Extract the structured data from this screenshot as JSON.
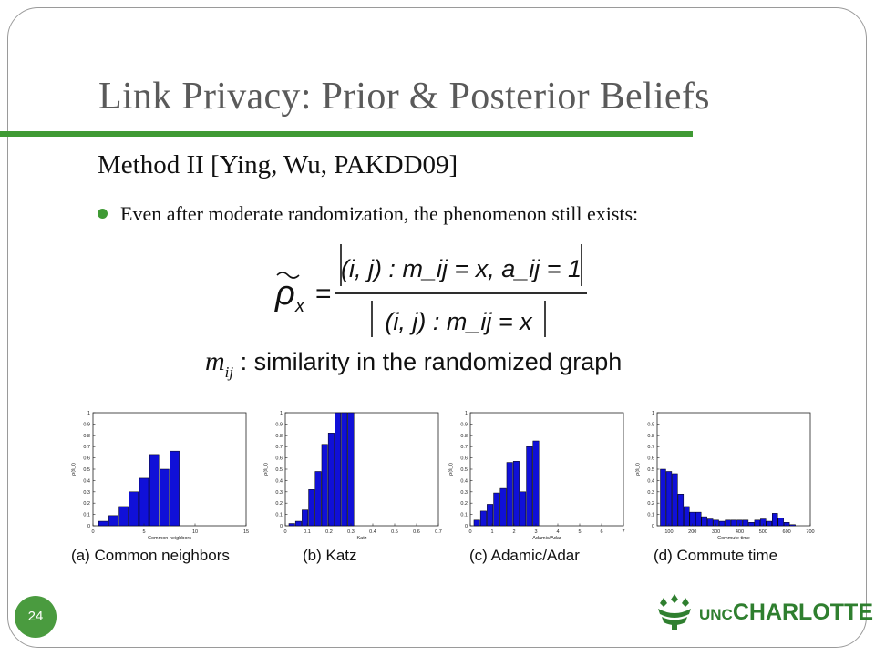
{
  "slide": {
    "title": "Link Privacy: Prior & Posterior Beliefs",
    "subtitle": "Method II [Ying, Wu, PAKDD09]",
    "bullet": "Even after moderate randomization, the phenomenon still exists:",
    "formula": {
      "lhs_symbol": "ρ",
      "lhs_subscript": "x",
      "equals": "=",
      "numerator": "(i, j) : m_ij = x, a_ij = 1",
      "denominator": "(i, j) : m_ij = x"
    },
    "definition": {
      "symbol": "m",
      "subscript": "ij",
      "text": ": similarity in the randomized graph"
    },
    "page_number": "24",
    "logo": {
      "prefix": "UNC",
      "name": "CHARLOTTE"
    },
    "colors": {
      "accent": "#3f9a34",
      "bar": "#1010d8",
      "frame": "#9a9a9a"
    }
  },
  "chart_data": [
    {
      "type": "bar",
      "caption": "(a) Common neighbors",
      "xlabel": "Common neighbors",
      "ylabel": "ρ(ŝ_i)",
      "xlim": [
        0,
        15
      ],
      "ylim": [
        0,
        1
      ],
      "xticks": [
        0,
        5,
        10,
        15
      ],
      "yticks": [
        0,
        0.1,
        0.2,
        0.3,
        0.4,
        0.5,
        0.6,
        0.7,
        0.8,
        0.9,
        1
      ],
      "bar_width": 0.9,
      "x": [
        1,
        2,
        3,
        4,
        5,
        6,
        7,
        8
      ],
      "values": [
        0.04,
        0.09,
        0.17,
        0.3,
        0.42,
        0.63,
        0.5,
        0.66
      ]
    },
    {
      "type": "bar",
      "caption": "(b) Katz",
      "xlabel": "Katz",
      "ylabel": "ρ(ŝ_i)",
      "xlim": [
        0,
        0.7
      ],
      "ylim": [
        0,
        1
      ],
      "xticks": [
        0,
        0.1,
        0.2,
        0.3,
        0.4,
        0.5,
        0.6,
        0.7
      ],
      "yticks": [
        0,
        0.1,
        0.2,
        0.3,
        0.4,
        0.5,
        0.6,
        0.7,
        0.8,
        0.9,
        1
      ],
      "bar_width": 0.027,
      "x": [
        0.03,
        0.06,
        0.09,
        0.12,
        0.15,
        0.18,
        0.21,
        0.24,
        0.27,
        0.3
      ],
      "values": [
        0.02,
        0.04,
        0.14,
        0.32,
        0.48,
        0.72,
        0.82,
        1.0,
        1.0,
        1.0
      ]
    },
    {
      "type": "bar",
      "caption": "(c) Adamic/Adar",
      "xlabel": "Adamic/Adar",
      "ylabel": "ρ(ŝ_i)",
      "xlim": [
        0,
        7
      ],
      "ylim": [
        0,
        1
      ],
      "xticks": [
        0,
        1,
        2,
        3,
        4,
        5,
        6,
        7
      ],
      "yticks": [
        0,
        0.1,
        0.2,
        0.3,
        0.4,
        0.5,
        0.6,
        0.7,
        0.8,
        0.9,
        1
      ],
      "bar_width": 0.27,
      "x": [
        0.3,
        0.6,
        0.9,
        1.2,
        1.5,
        1.8,
        2.1,
        2.4,
        2.7,
        3.0
      ],
      "values": [
        0.05,
        0.13,
        0.19,
        0.29,
        0.33,
        0.56,
        0.57,
        0.3,
        0.7,
        0.75
      ]
    },
    {
      "type": "bar",
      "caption": "(d) Commute time",
      "xlabel": "Commute time",
      "ylabel": "ρ(ŝ_i)",
      "xlim": [
        50,
        700
      ],
      "ylim": [
        0,
        1
      ],
      "xticks": [
        100,
        200,
        300,
        400,
        500,
        600,
        700
      ],
      "yticks": [
        0,
        0.1,
        0.2,
        0.3,
        0.4,
        0.5,
        0.6,
        0.7,
        0.8,
        0.9,
        1
      ],
      "bar_width": 23,
      "x": [
        75,
        100,
        125,
        150,
        175,
        200,
        225,
        250,
        275,
        300,
        325,
        350,
        375,
        400,
        425,
        450,
        475,
        500,
        525,
        550,
        575,
        600,
        625
      ],
      "values": [
        0.5,
        0.48,
        0.46,
        0.28,
        0.17,
        0.12,
        0.12,
        0.08,
        0.06,
        0.05,
        0.04,
        0.05,
        0.05,
        0.05,
        0.05,
        0.03,
        0.05,
        0.06,
        0.04,
        0.11,
        0.07,
        0.03,
        0.01
      ]
    }
  ]
}
